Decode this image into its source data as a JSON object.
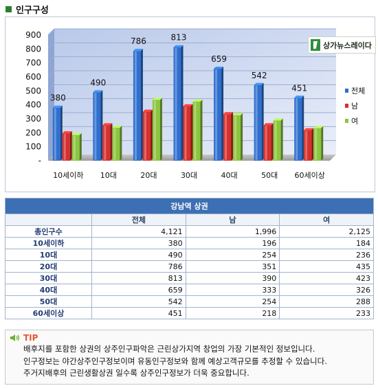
{
  "header": {
    "title": "인구구성"
  },
  "brand": {
    "name": "상가뉴스레이다"
  },
  "chart_data": {
    "type": "bar",
    "categories": [
      "10세이하",
      "10대",
      "20대",
      "30대",
      "40대",
      "50대",
      "60세이상"
    ],
    "series": [
      {
        "name": "전체",
        "values": [
          380,
          490,
          786,
          813,
          659,
          542,
          451
        ],
        "color": "#2f6fcf"
      },
      {
        "name": "남",
        "values": [
          196,
          254,
          351,
          390,
          333,
          254,
          218
        ],
        "color": "#d8302c"
      },
      {
        "name": "여",
        "values": [
          184,
          236,
          435,
          423,
          326,
          288,
          233
        ],
        "color": "#8cc63f"
      }
    ],
    "data_labels": [
      "380",
      "490",
      "786",
      "813",
      "659",
      "542",
      "451"
    ],
    "ylim": [
      0,
      900
    ],
    "yticks": [
      "-",
      "100",
      "200",
      "300",
      "400",
      "500",
      "600",
      "700",
      "800",
      "900"
    ],
    "legend_position": "right",
    "grid": true
  },
  "table": {
    "caption": "강남역 상권",
    "headers": [
      "",
      "전체",
      "남",
      "여"
    ],
    "rows": [
      {
        "label": "총인구수",
        "total": "4,121",
        "male": "1,996",
        "female": "2,125"
      },
      {
        "label": "10세이하",
        "total": "380",
        "male": "196",
        "female": "184"
      },
      {
        "label": "10대",
        "total": "490",
        "male": "254",
        "female": "236"
      },
      {
        "label": "20대",
        "total": "786",
        "male": "351",
        "female": "435"
      },
      {
        "label": "30대",
        "total": "813",
        "male": "390",
        "female": "423"
      },
      {
        "label": "40대",
        "total": "659",
        "male": "333",
        "female": "326"
      },
      {
        "label": "50대",
        "total": "542",
        "male": "254",
        "female": "288"
      },
      {
        "label": "60세이상",
        "total": "451",
        "male": "218",
        "female": "233"
      }
    ]
  },
  "tip": {
    "label": "TIP",
    "lines": [
      "배후지를 포함한 상권의 상주인구파악은 근린상가지역 창업의 가장 기본적인 정보입니다.",
      "인구정보는 야간상주인구정보이며 유동인구정보와 함께 예상고객규모를 추정할 수 있습니다.",
      "주거지배후의 근린생활상권 일수록 상주인구정보가 더욱 중요합니다."
    ]
  }
}
